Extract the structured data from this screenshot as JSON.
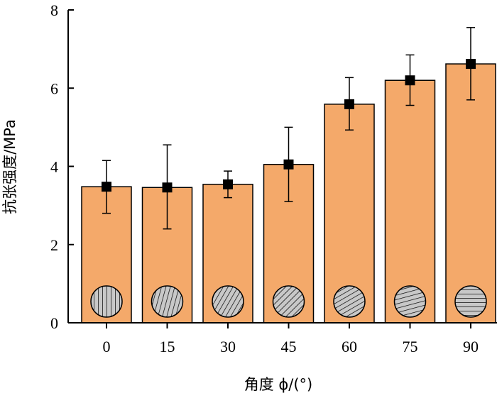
{
  "chart_data": {
    "type": "bar",
    "categories": [
      "0",
      "15",
      "30",
      "45",
      "60",
      "75",
      "90"
    ],
    "values": [
      3.48,
      3.46,
      3.54,
      4.05,
      5.59,
      6.2,
      6.62
    ],
    "error_low": [
      2.8,
      2.4,
      3.2,
      3.1,
      4.93,
      5.56,
      5.7
    ],
    "error_high": [
      4.15,
      4.55,
      3.88,
      5.0,
      6.27,
      6.85,
      7.55
    ],
    "fiber_angles_deg": [
      90,
      75,
      60,
      45,
      30,
      15,
      0
    ],
    "xlabel": "角度 ϕ/(°)",
    "ylabel": "抗张强度/MPa",
    "yticks": [
      "0",
      "2",
      "4",
      "6",
      "8"
    ],
    "ylim": [
      0,
      8
    ],
    "grid": false,
    "legend": "none",
    "colors": {
      "bar_fill": "#F4A96A",
      "bar_stroke": "#000000",
      "marker": "#000000",
      "disc_fill": "#C8C8C8"
    }
  }
}
